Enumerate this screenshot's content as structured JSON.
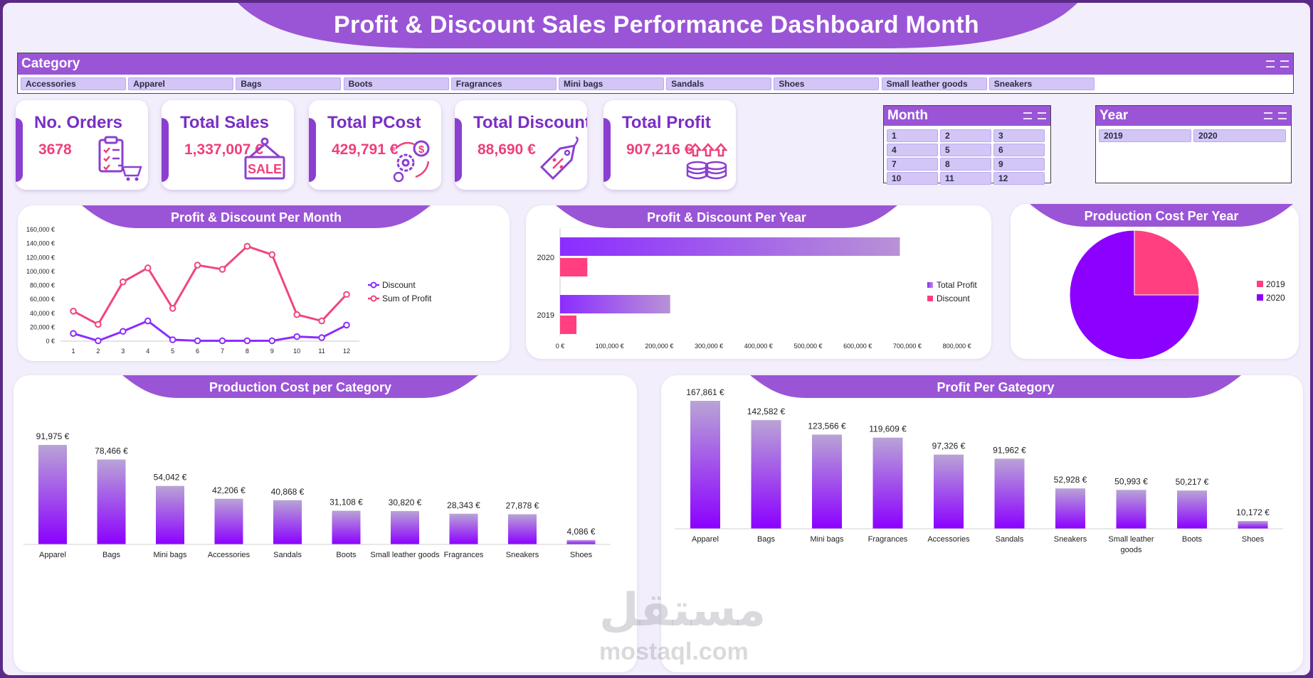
{
  "title": "Profit & Discount Sales Performance Dashboard Month",
  "colors": {
    "purple": "#8b2cff",
    "pink": "#ff3f7f",
    "header": "#9a55d6",
    "kpi_value": "#ee3f7d",
    "kpi_label": "#7a2fc4"
  },
  "category_slicer": {
    "title": "Category",
    "items": [
      "Accessories",
      "Apparel",
      "Bags",
      "Boots",
      "Fragrances",
      "Mini bags",
      "Sandals",
      "Shoes",
      "Small leather goods",
      "Sneakers"
    ]
  },
  "month_slicer": {
    "title": "Month",
    "items": [
      "1",
      "2",
      "3",
      "4",
      "5",
      "6",
      "7",
      "8",
      "9",
      "10",
      "11",
      "12"
    ]
  },
  "year_slicer": {
    "title": "Year",
    "items": [
      "2019",
      "2020"
    ]
  },
  "kpis": [
    {
      "label": "No. Orders",
      "value": "3678",
      "icon": "clipboard-cart-icon"
    },
    {
      "label": "Total Sales",
      "value": "1,337,007 €",
      "icon": "sale-sign-icon"
    },
    {
      "label": "Total PCost",
      "value": "429,791 €",
      "icon": "gears-money-icon"
    },
    {
      "label": "Total Discount",
      "value": "88,690 €",
      "icon": "discount-tag-icon"
    },
    {
      "label": "Total Profit",
      "value": "907,216 €",
      "icon": "coins-arrows-icon"
    }
  ],
  "chart_data": [
    {
      "id": "profit_discount_month",
      "type": "line",
      "title": "Profit & Discount Per Month",
      "x": [
        1,
        2,
        3,
        4,
        5,
        6,
        7,
        8,
        9,
        10,
        11,
        12
      ],
      "series": [
        {
          "name": "Discount",
          "color": "#8b2cff",
          "values": [
            11000,
            500,
            14000,
            29000,
            2000,
            500,
            500,
            500,
            500,
            6500,
            5000,
            23000
          ]
        },
        {
          "name": "Sum of Profit",
          "color": "#f0467a",
          "values": [
            43000,
            24000,
            85000,
            105000,
            47000,
            109000,
            103000,
            136000,
            124000,
            38000,
            29000,
            67000
          ]
        }
      ],
      "ylim": [
        0,
        160000
      ],
      "y_ticks": [
        "0 €",
        "20,000 €",
        "40,000 €",
        "60,000 €",
        "80,000 €",
        "100,000 €",
        "120,000 €",
        "140,000 €",
        "160,000 €"
      ],
      "legend": "right"
    },
    {
      "id": "profit_discount_year",
      "type": "bar",
      "orientation": "horizontal",
      "title": "Profit & Discount Per Year",
      "categories": [
        "2020",
        "2019"
      ],
      "series": [
        {
          "name": "Total Profit",
          "color": "#8b2cff",
          "values": [
            685000,
            222000
          ]
        },
        {
          "name": "Discount",
          "color": "#ff3f7f",
          "values": [
            55000,
            33000
          ]
        }
      ],
      "xlim": [
        0,
        800000
      ],
      "x_ticks": [
        "0 €",
        "100,000 €",
        "200,000 €",
        "300,000 €",
        "400,000 €",
        "500,000 €",
        "600,000 €",
        "700,000 €",
        "800,000 €"
      ],
      "legend": "right"
    },
    {
      "id": "pcost_year",
      "type": "pie",
      "title": "Production Cost Per Year",
      "labels": [
        "2019",
        "2020"
      ],
      "values": [
        25,
        75
      ],
      "colors": [
        "#ff3f7f",
        "#8b00ff"
      ],
      "legend": "right"
    },
    {
      "id": "pcost_category",
      "type": "bar",
      "title": "Production Cost per Category",
      "categories": [
        "Apparel",
        "Bags",
        "Mini bags",
        "Accessories",
        "Sandals",
        "Boots",
        "Small leather goods",
        "Fragrances",
        "Sneakers",
        "Shoes"
      ],
      "values": [
        91975,
        78466,
        54042,
        42206,
        40868,
        31108,
        30820,
        28343,
        27878,
        4086
      ],
      "labels": [
        "91,975 €",
        "78,466 €",
        "54,042 €",
        "42,206 €",
        "40,868 €",
        "31,108 €",
        "30,820 €",
        "28,343 €",
        "27,878 €",
        "4,086 €"
      ]
    },
    {
      "id": "profit_category",
      "type": "bar",
      "title": "Profit Per Gategory",
      "categories": [
        "Apparel",
        "Bags",
        "Mini bags",
        "Fragrances",
        "Accessories",
        "Sandals",
        "Sneakers",
        "Small leather goods",
        "Boots",
        "Shoes"
      ],
      "values": [
        167861,
        142582,
        123566,
        119609,
        97326,
        91962,
        52928,
        50993,
        50217,
        10172
      ],
      "labels": [
        "167,861 €",
        "142,582 €",
        "123,566 €",
        "119,609 €",
        "97,326 €",
        "91,962 €",
        "52,928 €",
        "50,993 €",
        "50,217 €",
        "10,172 €"
      ]
    }
  ],
  "watermark": {
    "arabic": "مستقل",
    "latin": "mostaql.com"
  }
}
